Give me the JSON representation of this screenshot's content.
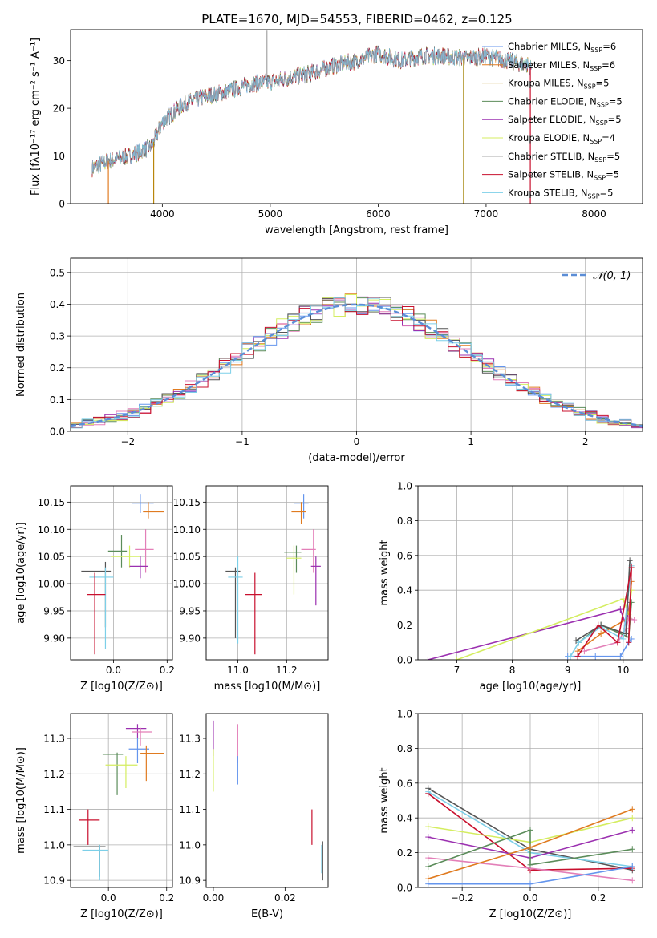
{
  "title": "PLATE=1670, MJD=54553, FIBERID=0462, z=0.125",
  "colors": {
    "Chabrier MILES": "#6495ed",
    "Salpeter MILES": "#e07b20",
    "Kroupa MILES": "#b8860b",
    "Chabrier ELODIE": "#5b8c5a",
    "Salpeter ELODIE": "#9b30b0",
    "Kroupa ELODIE": "#d4ed60",
    "Chabrier STELIB": "#555555",
    "Salpeter STELIB": "#c8102e",
    "Kroupa STELIB": "#7ccfe8",
    "pink": "#e37fb8",
    "olive": "#8c9a3a"
  },
  "chart_data": [
    {
      "id": "spectrum",
      "type": "line",
      "title": "PLATE=1670, MJD=54553, FIBERID=0462, z=0.125",
      "xlabel": "wavelength [Angstrom, rest frame]",
      "ylabel": "Flux [fλ10⁻¹⁷ erg cm⁻² s⁻¹ A⁻¹]",
      "xlim": [
        3150,
        8450
      ],
      "ylim": [
        0,
        36.5
      ],
      "xticks": [
        4000,
        5000,
        6000,
        7000,
        8000
      ],
      "yticks": [
        0,
        10,
        20,
        30
      ],
      "grid": false,
      "legend_position": "top-right",
      "continuum": [
        [
          3350,
          7.5
        ],
        [
          3500,
          9
        ],
        [
          3700,
          10
        ],
        [
          3900,
          12
        ],
        [
          4000,
          17
        ],
        [
          4200,
          21
        ],
        [
          4400,
          22.5
        ],
        [
          4600,
          23.5
        ],
        [
          4800,
          25
        ],
        [
          5000,
          25.5
        ],
        [
          5200,
          26.5
        ],
        [
          5400,
          27.5
        ],
        [
          5600,
          29
        ],
        [
          5800,
          30
        ],
        [
          6000,
          31.5
        ],
        [
          6200,
          30
        ],
        [
          6400,
          31
        ],
        [
          6600,
          31
        ],
        [
          6800,
          30.5
        ],
        [
          7000,
          31
        ],
        [
          7200,
          30
        ],
        [
          7400,
          29
        ],
        [
          7420,
          28.5
        ]
      ],
      "spikes_to_zero": [
        3500,
        3920,
        6790,
        7410
      ],
      "series": [
        {
          "name": "Chabrier MILES, N_SSP=6"
        },
        {
          "name": "Salpeter MILES, N_SSP=6"
        },
        {
          "name": "Kroupa MILES, N_SSP=5"
        },
        {
          "name": "Chabrier ELODIE, N_SSP=5"
        },
        {
          "name": "Salpeter ELODIE, N_SSP=5"
        },
        {
          "name": "Kroupa ELODIE, N_SSP=4"
        },
        {
          "name": "Chabrier STELIB, N_SSP=5"
        },
        {
          "name": "Salpeter STELIB, N_SSP=5"
        },
        {
          "name": "Kroupa STELIB, N_SSP=5"
        }
      ]
    },
    {
      "id": "residuals",
      "type": "line",
      "xlabel": "(data-model)/error",
      "ylabel": "Normed distribution",
      "xlim": [
        -2.5,
        2.5
      ],
      "ylim": [
        0,
        0.545
      ],
      "xticks": [
        -2,
        -1,
        0,
        1,
        2
      ],
      "yticks": [
        0.0,
        0.1,
        0.2,
        0.3,
        0.4,
        0.5
      ],
      "grid": true,
      "legend_position": "top-right",
      "reference": {
        "name": "𝒩(0, 1)",
        "mean": 0,
        "sigma": 1
      },
      "bin_width": 0.1,
      "series_count": 9
    },
    {
      "id": "age_vs_Z",
      "type": "scatter",
      "xlabel": "Z [log10(Z/Z⊙)]",
      "ylabel": "age  [log10(age/yr)]",
      "xlim": [
        -0.16,
        0.22
      ],
      "ylim": [
        9.86,
        10.18
      ],
      "xticks": [
        0.0,
        0.2
      ],
      "yticks": [
        9.9,
        9.95,
        10.0,
        10.05,
        10.1,
        10.15
      ],
      "grid": true,
      "points": [
        {
          "series": "Chabrier MILES",
          "x": 0.1,
          "xlo": 0.07,
          "xhi": 0.15,
          "y": 10.148,
          "ylo": 10.13,
          "yhi": 10.165
        },
        {
          "series": "Salpeter MILES",
          "x": 0.13,
          "xlo": 0.11,
          "xhi": 0.19,
          "y": 10.132,
          "ylo": 10.12,
          "yhi": 10.15
        },
        {
          "series": "pink",
          "x": 0.12,
          "xlo": 0.08,
          "xhi": 0.15,
          "y": 10.063,
          "ylo": 10.02,
          "yhi": 10.1
        },
        {
          "series": "Chabrier ELODIE",
          "x": 0.03,
          "xlo": -0.02,
          "xhi": 0.05,
          "y": 10.06,
          "ylo": 10.03,
          "yhi": 10.09
        },
        {
          "series": "Kroupa ELODIE",
          "x": 0.06,
          "xlo": -0.01,
          "xhi": 0.1,
          "y": 10.05,
          "ylo": 10.03,
          "yhi": 10.07
        },
        {
          "series": "Salpeter ELODIE",
          "x": 0.1,
          "xlo": 0.06,
          "xhi": 0.13,
          "y": 10.032,
          "ylo": 10.01,
          "yhi": 10.05
        },
        {
          "series": "Chabrier STELIB",
          "x": -0.03,
          "xlo": -0.12,
          "xhi": -0.01,
          "y": 10.023,
          "ylo": 9.92,
          "yhi": 10.04
        },
        {
          "series": "Kroupa STELIB",
          "x": -0.03,
          "xlo": -0.09,
          "xhi": 0.0,
          "y": 10.012,
          "ylo": 9.88,
          "yhi": 10.03
        },
        {
          "series": "Salpeter STELIB",
          "x": -0.07,
          "xlo": -0.1,
          "xhi": -0.03,
          "y": 9.98,
          "ylo": 9.87,
          "yhi": 10.02
        }
      ]
    },
    {
      "id": "age_vs_mass",
      "type": "scatter",
      "xlabel": "mass [log10(M/M⊙)]",
      "ylabel": "",
      "xlim": [
        10.87,
        11.37
      ],
      "ylim": [
        9.86,
        10.18
      ],
      "xticks": [
        11.0,
        11.2
      ],
      "yticks": [
        9.9,
        9.95,
        10.0,
        10.05,
        10.1,
        10.15
      ],
      "grid": true,
      "points": [
        {
          "series": "Chabrier MILES",
          "x": 11.27,
          "xlo": 11.23,
          "xhi": 11.29,
          "y": 10.148,
          "ylo": 10.12,
          "yhi": 10.165
        },
        {
          "series": "Salpeter MILES",
          "x": 11.26,
          "xlo": 11.22,
          "xhi": 11.28,
          "y": 10.132,
          "ylo": 10.11,
          "yhi": 10.15
        },
        {
          "series": "pink",
          "x": 11.31,
          "xlo": 11.26,
          "xhi": 11.32,
          "y": 10.063,
          "ylo": 10.02,
          "yhi": 10.1
        },
        {
          "series": "Chabrier ELODIE",
          "x": 11.24,
          "xlo": 11.19,
          "xhi": 11.26,
          "y": 10.058,
          "ylo": 10.02,
          "yhi": 10.07
        },
        {
          "series": "Kroupa ELODIE",
          "x": 11.23,
          "xlo": 11.2,
          "xhi": 11.26,
          "y": 10.047,
          "ylo": 9.98,
          "yhi": 10.07
        },
        {
          "series": "Salpeter ELODIE",
          "x": 11.32,
          "xlo": 11.3,
          "xhi": 11.34,
          "y": 10.032,
          "ylo": 9.96,
          "yhi": 10.05
        },
        {
          "series": "Chabrier STELIB",
          "x": 10.99,
          "xlo": 10.95,
          "xhi": 11.01,
          "y": 10.023,
          "ylo": 9.9,
          "yhi": 10.03
        },
        {
          "series": "Kroupa STELIB",
          "x": 11.0,
          "xlo": 10.96,
          "xhi": 11.02,
          "y": 10.012,
          "ylo": 9.89,
          "yhi": 10.05
        },
        {
          "series": "Salpeter STELIB",
          "x": 11.07,
          "xlo": 11.03,
          "xhi": 11.1,
          "y": 9.98,
          "ylo": 9.87,
          "yhi": 10.02
        }
      ]
    },
    {
      "id": "weight_vs_age",
      "type": "line",
      "xlabel": "age  [log10(age/yr)]",
      "ylabel": "mass weight",
      "xlim": [
        6.3,
        10.35
      ],
      "ylim": [
        0,
        1.0
      ],
      "xticks": [
        7,
        8,
        9,
        10
      ],
      "yticks": [
        0.0,
        0.2,
        0.4,
        0.6,
        0.8,
        1.0
      ],
      "grid": true,
      "series": [
        {
          "color": "Salpeter ELODIE",
          "points": [
            [
              6.48,
              0.0
            ],
            [
              9.95,
              0.29
            ],
            [
              10.05,
              0.2
            ],
            [
              10.12,
              0.33
            ]
          ]
        },
        {
          "color": "Kroupa ELODIE",
          "points": [
            [
              7.0,
              0.0
            ],
            [
              10.0,
              0.35
            ],
            [
              10.1,
              0.26
            ],
            [
              10.15,
              0.4
            ]
          ]
        },
        {
          "color": "Chabrier MILES",
          "points": [
            [
              9.0,
              0.02
            ],
            [
              9.5,
              0.02
            ],
            [
              9.95,
              0.02
            ],
            [
              10.1,
              0.1
            ],
            [
              10.15,
              0.12
            ]
          ]
        },
        {
          "color": "Salpeter MILES",
          "points": [
            [
              9.18,
              0.05
            ],
            [
              9.6,
              0.15
            ],
            [
              10.1,
              0.24
            ],
            [
              10.15,
              0.45
            ]
          ]
        },
        {
          "color": "pink",
          "points": [
            [
              9.3,
              0.05
            ],
            [
              9.9,
              0.1
            ],
            [
              10.05,
              0.18
            ],
            [
              10.1,
              0.24
            ],
            [
              10.2,
              0.23
            ]
          ]
        },
        {
          "color": "Chabrier ELODIE",
          "points": [
            [
              9.2,
              0.1
            ],
            [
              9.6,
              0.2
            ],
            [
              10.1,
              0.13
            ],
            [
              10.15,
              0.33
            ]
          ]
        },
        {
          "color": "Kroupa STELIB",
          "points": [
            [
              9.05,
              0.02
            ],
            [
              9.2,
              0.1
            ],
            [
              9.6,
              0.19
            ],
            [
              10.0,
              0.12
            ],
            [
              10.15,
              0.54
            ]
          ]
        },
        {
          "color": "Chabrier STELIB",
          "points": [
            [
              9.15,
              0.11
            ],
            [
              9.6,
              0.2
            ],
            [
              10.05,
              0.15
            ],
            [
              10.12,
              0.57
            ]
          ]
        },
        {
          "color": "Salpeter STELIB",
          "points": [
            [
              9.18,
              0.02
            ],
            [
              9.55,
              0.2
            ],
            [
              9.9,
              0.1
            ],
            [
              10.15,
              0.53
            ],
            [
              10.1,
              0.1
            ]
          ]
        }
      ]
    },
    {
      "id": "mass_vs_Z",
      "type": "scatter",
      "xlabel": "Z [log10(Z/Z⊙)]",
      "ylabel": "mass [log10(M/M⊙)]",
      "xlim": [
        -0.13,
        0.22
      ],
      "ylim": [
        10.88,
        11.37
      ],
      "xticks": [
        0.0,
        0.2
      ],
      "yticks": [
        10.9,
        11.0,
        11.1,
        11.2,
        11.3
      ],
      "grid": true,
      "points": [
        {
          "series": "Salpeter ELODIE",
          "x": 0.1,
          "xlo": 0.06,
          "xhi": 0.13,
          "y": 11.328,
          "ylo": 11.3,
          "yhi": 11.34
        },
        {
          "series": "pink",
          "x": 0.11,
          "xlo": 0.08,
          "xhi": 0.15,
          "y": 11.318,
          "ylo": 11.28,
          "yhi": 11.33
        },
        {
          "series": "Chabrier MILES",
          "x": 0.1,
          "xlo": 0.07,
          "xhi": 0.14,
          "y": 11.27,
          "ylo": 11.23,
          "yhi": 11.3
        },
        {
          "series": "Salpeter MILES",
          "x": 0.13,
          "xlo": 0.11,
          "xhi": 0.19,
          "y": 11.258,
          "ylo": 11.18,
          "yhi": 11.28
        },
        {
          "series": "Chabrier ELODIE",
          "x": 0.03,
          "xlo": -0.02,
          "xhi": 0.05,
          "y": 11.255,
          "ylo": 11.14,
          "yhi": 11.26
        },
        {
          "series": "Kroupa ELODIE",
          "x": 0.06,
          "xlo": -0.01,
          "xhi": 0.1,
          "y": 11.225,
          "ylo": 11.16,
          "yhi": 11.25
        },
        {
          "series": "Salpeter STELIB",
          "x": -0.07,
          "xlo": -0.1,
          "xhi": -0.03,
          "y": 11.07,
          "ylo": 11.0,
          "yhi": 11.1
        },
        {
          "series": "Chabrier STELIB",
          "x": -0.03,
          "xlo": -0.12,
          "xhi": -0.01,
          "y": 10.995,
          "ylo": 10.91,
          "yhi": 11.0
        },
        {
          "series": "Kroupa STELIB",
          "x": -0.03,
          "xlo": -0.09,
          "xhi": 0.0,
          "y": 10.985,
          "ylo": 10.9,
          "yhi": 11.0
        }
      ]
    },
    {
      "id": "mass_vs_ebv",
      "type": "scatter",
      "xlabel": "E(B-V)",
      "ylabel": "",
      "xlim": [
        -0.002,
        0.032
      ],
      "ylim": [
        10.88,
        11.37
      ],
      "xticks": [
        0.0,
        0.02
      ],
      "yticks": [
        10.9,
        11.0,
        11.1,
        11.2,
        11.3
      ],
      "grid": false,
      "points": [
        {
          "series": "Salpeter ELODIE",
          "x": 0.0,
          "ylo": 11.25,
          "yhi": 11.35,
          "y": 11.3
        },
        {
          "series": "Kroupa ELODIE",
          "x": 0.0,
          "ylo": 11.15,
          "yhi": 11.27,
          "y": 11.2
        },
        {
          "series": "pink",
          "x": 0.0068,
          "ylo": 11.23,
          "yhi": 11.34,
          "y": 11.3
        },
        {
          "series": "Chabrier MILES",
          "x": 0.0068,
          "ylo": 11.17,
          "yhi": 11.25,
          "y": 11.2
        },
        {
          "series": "Salpeter STELIB",
          "x": 0.0275,
          "ylo": 11.0,
          "yhi": 11.1,
          "y": 11.05
        },
        {
          "series": "Chabrier STELIB",
          "x": 0.0305,
          "ylo": 10.9,
          "yhi": 11.01,
          "y": 10.95
        },
        {
          "series": "Kroupa STELIB",
          "x": 0.0302,
          "ylo": 10.92,
          "yhi": 11.0,
          "y": 10.96
        }
      ]
    },
    {
      "id": "weight_vs_Z",
      "type": "line",
      "xlabel": "Z [log10(Z/Z⊙)]",
      "ylabel": "mass weight",
      "xlim": [
        -0.33,
        0.33
      ],
      "ylim": [
        0,
        1.0
      ],
      "xticks": [
        -0.2,
        0.0,
        0.2
      ],
      "yticks": [
        0.0,
        0.2,
        0.4,
        0.6,
        0.8,
        1.0
      ],
      "grid": true,
      "series": [
        {
          "color": "Chabrier STELIB",
          "points": [
            [
              -0.3,
              0.57
            ],
            [
              0.0,
              0.22
            ],
            [
              0.3,
              0.1
            ]
          ]
        },
        {
          "color": "Salpeter STELIB",
          "points": [
            [
              -0.3,
              0.54
            ],
            [
              0.0,
              0.1
            ],
            [
              0.3,
              0.11
            ]
          ]
        },
        {
          "color": "Kroupa STELIB",
          "points": [
            [
              -0.3,
              0.55
            ],
            [
              0.0,
              0.2
            ],
            [
              0.3,
              0.12
            ]
          ]
        },
        {
          "color": "Kroupa ELODIE",
          "points": [
            [
              -0.3,
              0.35
            ],
            [
              0.0,
              0.26
            ],
            [
              0.3,
              0.4
            ]
          ]
        },
        {
          "color": "Salpeter ELODIE",
          "points": [
            [
              -0.3,
              0.29
            ],
            [
              0.0,
              0.17
            ],
            [
              0.3,
              0.33
            ]
          ]
        },
        {
          "color": "pink",
          "points": [
            [
              -0.3,
              0.17
            ],
            [
              0.0,
              0.11
            ],
            [
              0.3,
              0.04
            ]
          ]
        },
        {
          "color": "Chabrier ELODIE",
          "points": [
            [
              -0.3,
              0.12
            ],
            [
              0.0,
              0.33
            ],
            [
              0.0,
              0.13
            ],
            [
              0.3,
              0.22
            ]
          ]
        },
        {
          "color": "Salpeter MILES",
          "points": [
            [
              -0.3,
              0.05
            ],
            [
              0.0,
              0.23
            ],
            [
              0.3,
              0.45
            ]
          ]
        },
        {
          "color": "Chabrier MILES",
          "points": [
            [
              -0.3,
              0.02
            ],
            [
              0.0,
              0.02
            ],
            [
              0.3,
              0.12
            ]
          ]
        }
      ]
    }
  ]
}
